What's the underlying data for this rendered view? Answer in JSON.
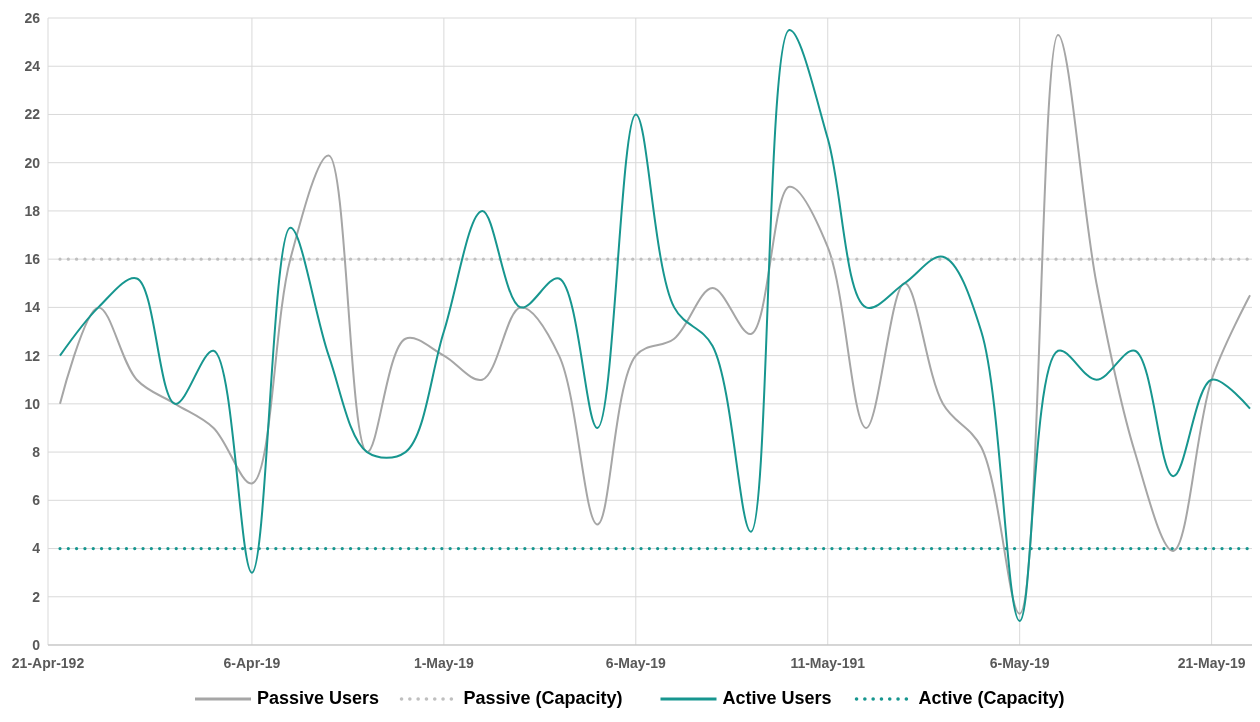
{
  "chart_data": {
    "type": "line",
    "categories": [
      "21-Apr-192",
      null,
      null,
      null,
      null,
      "6-Apr-19",
      null,
      null,
      null,
      null,
      "1-May-19",
      null,
      null,
      null,
      null,
      "6-May-19",
      null,
      null,
      null,
      null,
      "11-May-191",
      null,
      null,
      null,
      null,
      "6-May-19",
      null,
      null,
      null,
      null,
      "21-May-19",
      null
    ],
    "series": [
      {
        "name": "Passive Users",
        "color": "#a6a6a6",
        "line_style": "solid",
        "values": [
          10,
          14,
          11,
          10,
          9,
          6.7,
          16,
          20.3,
          8,
          12.7,
          12,
          11,
          14,
          12,
          5,
          12,
          12.7,
          14.8,
          12.9,
          19,
          16.5,
          9,
          15,
          10,
          8.2,
          1.3,
          25.3,
          15,
          8,
          3.9,
          11,
          14.5
        ]
      },
      {
        "name": "Passive (Capacity)",
        "color": "#bfbfbf",
        "line_style": "dotted",
        "values": [
          16,
          16,
          16,
          16,
          16,
          16,
          16,
          16,
          16,
          16,
          16,
          16,
          16,
          16,
          16,
          16,
          16,
          16,
          16,
          16,
          16,
          16,
          16,
          16,
          16,
          16,
          16,
          16,
          16,
          16,
          16,
          16
        ]
      },
      {
        "name": "Active Users",
        "color": "#17968f",
        "line_style": "solid",
        "values": [
          12,
          14,
          15.2,
          10,
          12.2,
          3,
          17.3,
          12,
          8,
          8,
          13,
          18,
          14,
          15.2,
          9,
          22,
          14,
          12.4,
          4.7,
          25.5,
          21,
          14,
          15,
          16.1,
          13,
          1,
          12.2,
          11,
          12.2,
          7,
          11,
          9.8
        ]
      },
      {
        "name": "Active (Capacity)",
        "color": "#17968f",
        "line_style": "dotted",
        "values": [
          4,
          4,
          4,
          4,
          4,
          4,
          4,
          4,
          4,
          4,
          4,
          4,
          4,
          4,
          4,
          4,
          4,
          4,
          4,
          4,
          4,
          4,
          4,
          4,
          4,
          4,
          4,
          4,
          4,
          4,
          4,
          4
        ]
      }
    ],
    "ylim": [
      0,
      26
    ],
    "yticks": [
      0,
      2,
      4,
      6,
      8,
      10,
      12,
      14,
      16,
      18,
      20,
      22,
      24,
      26
    ],
    "grid": true,
    "legend": "bottom",
    "marker": "none"
  }
}
